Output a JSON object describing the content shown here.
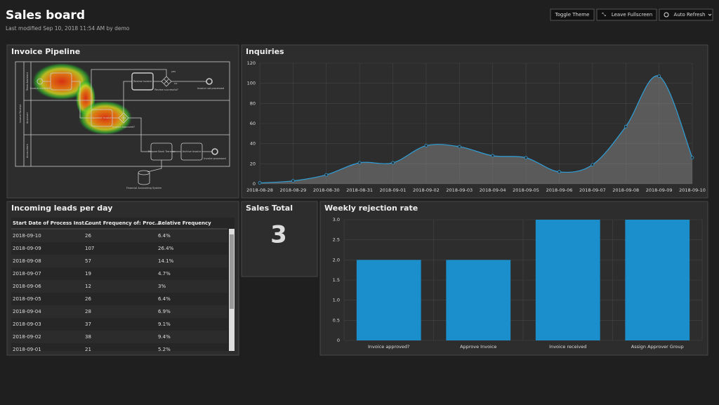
{
  "header": {
    "title": "Sales board",
    "subtitle": "Last modified Sep 10, 2018 11:54 AM by demo"
  },
  "buttons": [
    "Toggle Theme",
    "Leave Fullscreen",
    "Auto Refresh"
  ],
  "pipeline": {
    "title": "Invoice Pipeline",
    "lanes": [
      "Team Assistant",
      "Approver",
      "Accountant"
    ],
    "pool": "Invoice Receipt",
    "nodes": [
      "Invoice received",
      "Review Invoice",
      "Review successful?",
      "Invoice not processed",
      "Approve Invoice",
      "Invoice approved?",
      "Prepare Bank Transfer",
      "Archive Invoice",
      "Invoice processed",
      "Financial Accounting System"
    ],
    "edges": [
      "yes",
      "no"
    ]
  },
  "inquiries": {
    "type": "line",
    "title": "Inquiries",
    "categories": [
      "2018-08-28",
      "2018-08-29",
      "2018-08-30",
      "2018-08-31",
      "2018-09-01",
      "2018-09-02",
      "2018-09-03",
      "2018-09-04",
      "2018-09-05",
      "2018-09-06",
      "2018-09-07",
      "2018-09-08",
      "2018-09-09",
      "2018-09-10"
    ],
    "values": [
      1,
      3,
      9,
      21,
      21,
      38,
      37,
      28,
      26,
      12,
      19,
      57,
      107,
      26
    ],
    "color": "#2e9fd9",
    "ylim": [
      0,
      120
    ],
    "yticks": [
      0,
      20,
      40,
      60,
      80,
      100,
      120
    ],
    "grid": true
  },
  "leads": {
    "title": "Incoming leads per day",
    "columns": [
      "Start Date of Process Inst...",
      "Count Frequency of: Proc...",
      "Relative Frequency"
    ],
    "rows": [
      [
        "2018-09-10",
        "26",
        "6.4%"
      ],
      [
        "2018-09-09",
        "107",
        "26.4%"
      ],
      [
        "2018-09-08",
        "57",
        "14.1%"
      ],
      [
        "2018-09-07",
        "19",
        "4.7%"
      ],
      [
        "2018-09-06",
        "12",
        "3%"
      ],
      [
        "2018-09-05",
        "26",
        "6.4%"
      ],
      [
        "2018-09-04",
        "28",
        "6.9%"
      ],
      [
        "2018-09-03",
        "37",
        "9.1%"
      ],
      [
        "2018-09-02",
        "38",
        "9.4%"
      ],
      [
        "2018-09-01",
        "21",
        "5.2%"
      ]
    ]
  },
  "sales_total": {
    "title": "Sales Total",
    "value": 3
  },
  "rejection": {
    "type": "bar",
    "title": "Weekly rejection rate",
    "categories": [
      "Invoice approved?",
      "Approve Invoice",
      "Invoice received",
      "Assign Approver Group"
    ],
    "values": [
      2,
      2,
      3,
      3
    ],
    "color": "#1a8fcb",
    "ylim": [
      0,
      3
    ],
    "yticks": [
      0,
      0.5,
      {
        "value": 1,
        "label": "1.0"
      },
      {
        "value": 1.5,
        "label": "1.5"
      },
      {
        "value": 2,
        "label": "2.0"
      },
      {
        "value": 2.5,
        "label": "2.5"
      },
      {
        "value": 3,
        "label": "3.0"
      }
    ],
    "grid": true
  }
}
